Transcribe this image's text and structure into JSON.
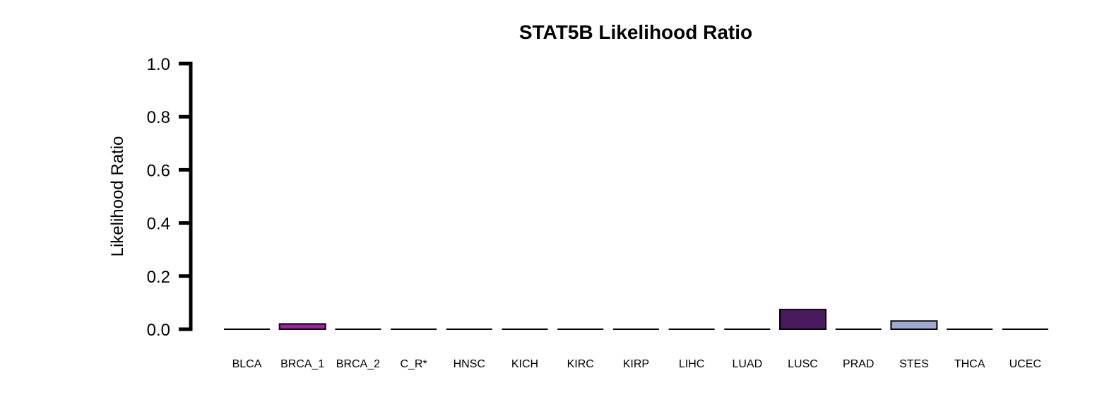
{
  "chart_data": {
    "type": "bar",
    "title": "STAT5B Likelihood Ratio",
    "xlabel": "",
    "ylabel": "Likelihood Ratio",
    "ylim": [
      0,
      1.0
    ],
    "yticks": [
      "0.0",
      "0.2",
      "0.4",
      "0.6",
      "0.8",
      "1.0"
    ],
    "grid": false,
    "legend": "none",
    "categories": [
      "BLCA",
      "BRCA_1",
      "BRCA_2",
      "C_R*",
      "HNSC",
      "KICH",
      "KIRC",
      "KIRP",
      "LIHC",
      "LUAD",
      "LUSC",
      "PRAD",
      "STES",
      "THCA",
      "UCEC"
    ],
    "values": [
      0,
      0.02,
      0,
      0,
      0,
      0,
      0,
      0,
      0,
      0,
      0.074,
      0,
      0.031,
      0,
      0
    ],
    "colors": [
      "#000000",
      "#A020A0",
      "#000000",
      "#000000",
      "#000000",
      "#000000",
      "#000000",
      "#000000",
      "#000000",
      "#000000",
      "#4A1A5E",
      "#000000",
      "#9EAAD0",
      "#000000",
      "#000000"
    ]
  }
}
